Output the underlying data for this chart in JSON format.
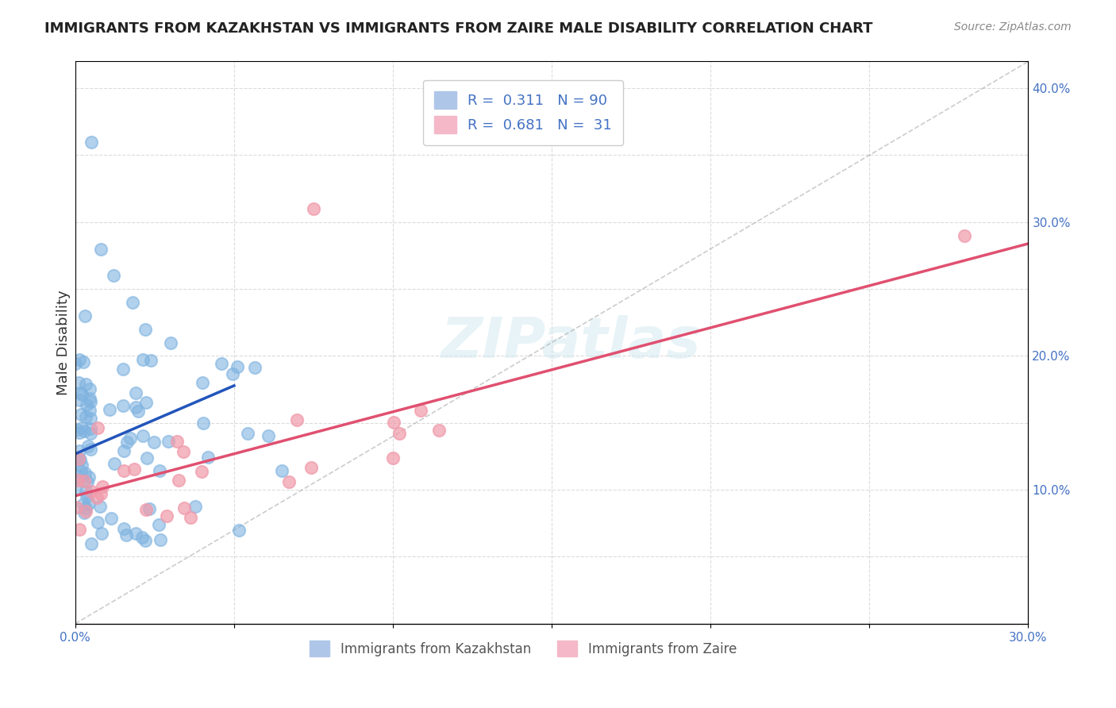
{
  "title": "IMMIGRANTS FROM KAZAKHSTAN VS IMMIGRANTS FROM ZAIRE MALE DISABILITY CORRELATION CHART",
  "source": "Source: ZipAtlas.com",
  "xlabel": "",
  "ylabel": "Male Disability",
  "xlim": [
    0.0,
    0.3
  ],
  "ylim": [
    0.0,
    0.42
  ],
  "xtick_labels": [
    "0.0%",
    "",
    "",
    "",
    "",
    "",
    "30.0%"
  ],
  "ytick_labels_right": [
    "",
    "10.0%",
    "",
    "20.0%",
    "",
    "30.0%",
    "",
    "40.0%"
  ],
  "legend_entries": [
    {
      "label": "R = 0.311   N = 90",
      "color": "#aec6e8"
    },
    {
      "label": "R = 0.681   N =  31",
      "color": "#f4b8c8"
    }
  ],
  "kazakhstan_color": "#7fb3e0",
  "zaire_color": "#f09aaa",
  "kazakhstan_R": 0.311,
  "kazakhstan_N": 90,
  "zaire_R": 0.681,
  "zaire_N": 31,
  "watermark": "ZIPatlas",
  "background_color": "#ffffff",
  "grid_color": "#cccccc",
  "title_color": "#222222",
  "source_color": "#888888"
}
